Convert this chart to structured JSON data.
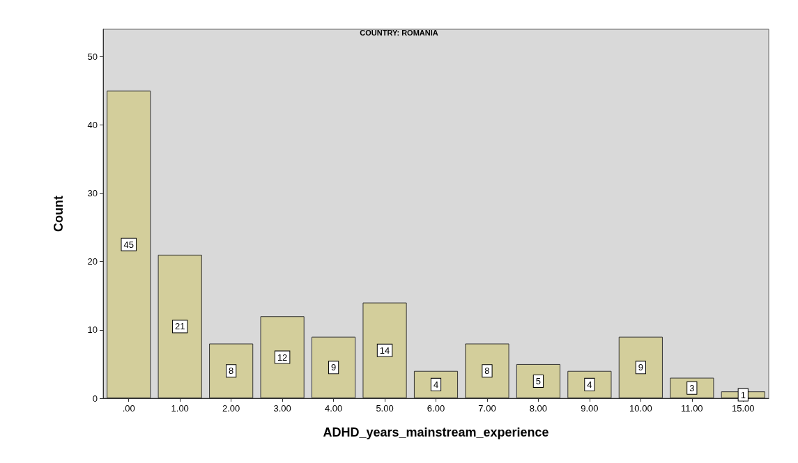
{
  "chart_data": {
    "type": "bar",
    "title": "COUNTRY: ROMANIA",
    "xlabel": "ADHD_years_mainstream_experience",
    "ylabel": "Count",
    "categories": [
      ".00",
      "1.00",
      "2.00",
      "3.00",
      "4.00",
      "5.00",
      "6.00",
      "7.00",
      "8.00",
      "9.00",
      "10.00",
      "11.00",
      "15.00"
    ],
    "values": [
      45,
      21,
      8,
      12,
      9,
      14,
      4,
      8,
      5,
      4,
      9,
      3,
      1
    ],
    "color": "#d3ce9b",
    "ylim": [
      0,
      54
    ],
    "yticks": [
      0,
      10,
      20,
      30,
      40,
      50
    ],
    "grid": false,
    "data_labels": true
  }
}
